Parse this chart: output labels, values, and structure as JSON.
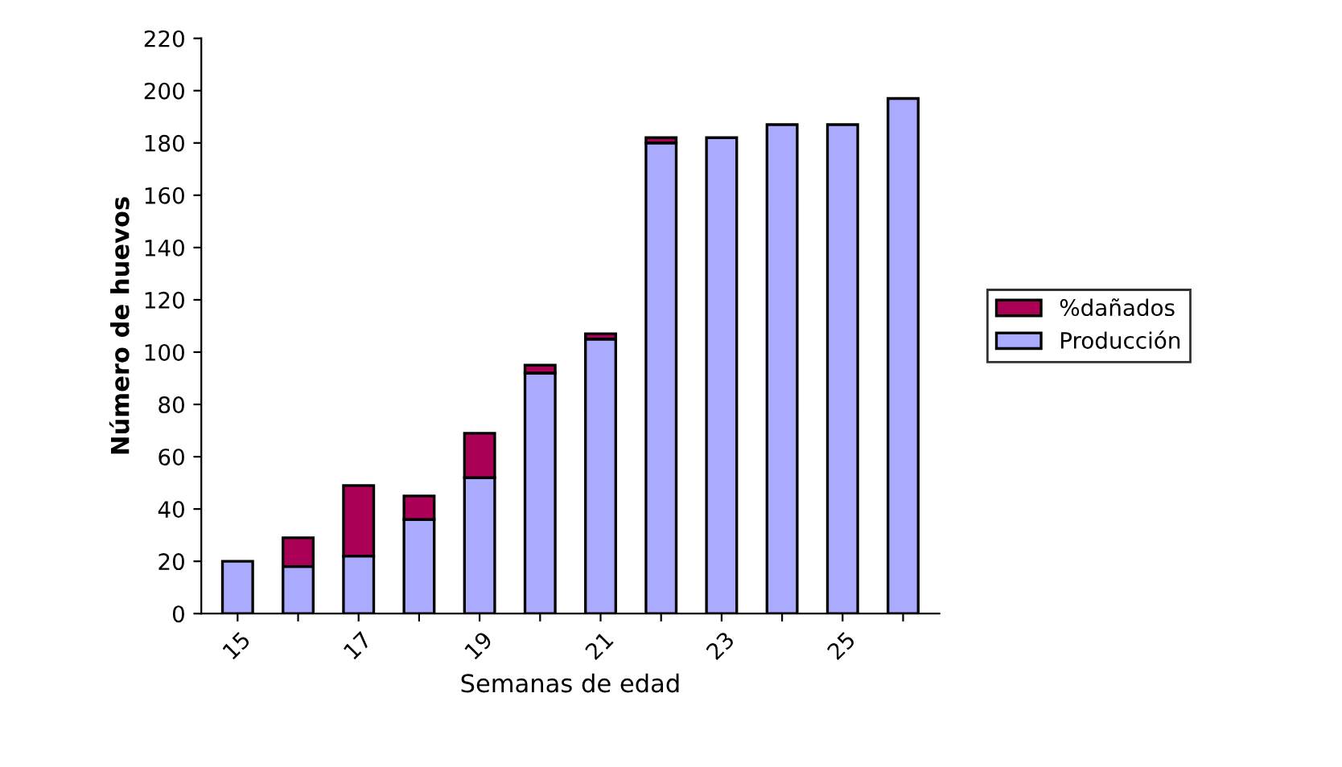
{
  "chart_data": {
    "type": "bar",
    "stacked": true,
    "xlabel": "Semanas de edad",
    "ylabel": "Número de huevos",
    "categories": [
      "15",
      null,
      "17",
      null,
      "19",
      null,
      "21",
      null,
      "23",
      null,
      "25",
      null
    ],
    "series": [
      {
        "name": "Producción",
        "color": "#aaaaff",
        "values": [
          20,
          18,
          22,
          36,
          52,
          92,
          105,
          180,
          182,
          187,
          187,
          197
        ]
      },
      {
        "name": "%dañados",
        "color": "#aa0055",
        "values": [
          null,
          11,
          27,
          9,
          17,
          3,
          2,
          2,
          null,
          null,
          null,
          null
        ]
      }
    ],
    "ylim": [
      0,
      220
    ],
    "yticks": [
      0,
      20,
      40,
      60,
      80,
      100,
      120,
      140,
      160,
      180,
      200,
      220
    ],
    "grid": false,
    "legend": "right"
  }
}
